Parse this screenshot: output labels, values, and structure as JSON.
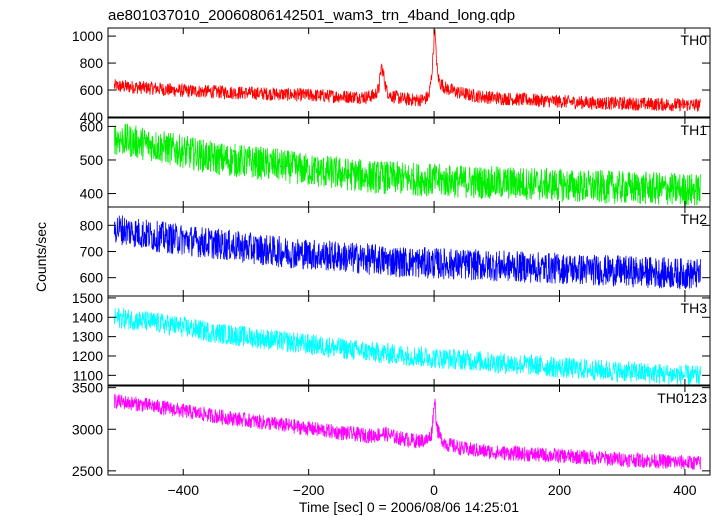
{
  "chart_data": {
    "type": "line",
    "title": "ae801037010_20060806142501_wam3_trn_4band_long.qdp",
    "xlabel": "Time [sec] 0 = 2006/08/06 14:25:01",
    "ylabel": "Counts/sec",
    "xlim": [
      -520,
      440
    ],
    "x_ticks": [
      -400,
      -200,
      0,
      200,
      400
    ],
    "x_tick_labels": [
      "−400",
      "−200",
      "0",
      "200",
      "400"
    ],
    "grid": false,
    "series": [
      {
        "name": "TH0",
        "color": "#ff0000",
        "ylim": [
          400,
          1060
        ],
        "y_ticks": [
          400,
          600,
          800,
          1000
        ],
        "points": [
          [
            -510,
            630
          ],
          [
            -490,
            625
          ],
          [
            -470,
            620
          ],
          [
            -440,
            610
          ],
          [
            -420,
            600
          ],
          [
            -400,
            595
          ],
          [
            -370,
            590
          ],
          [
            -340,
            585
          ],
          [
            -310,
            580
          ],
          [
            -280,
            575
          ],
          [
            -250,
            570
          ],
          [
            -220,
            565
          ],
          [
            -190,
            560
          ],
          [
            -160,
            555
          ],
          [
            -130,
            550
          ],
          [
            -110,
            548
          ],
          [
            -95,
            560
          ],
          [
            -88,
            610
          ],
          [
            -84,
            780
          ],
          [
            -80,
            700
          ],
          [
            -76,
            600
          ],
          [
            -70,
            560
          ],
          [
            -50,
            535
          ],
          [
            -30,
            525
          ],
          [
            -15,
            530
          ],
          [
            -8,
            560
          ],
          [
            -4,
            700
          ],
          [
            -1,
            900
          ],
          [
            1,
            1060
          ],
          [
            3,
            880
          ],
          [
            6,
            700
          ],
          [
            10,
            650
          ],
          [
            20,
            610
          ],
          [
            40,
            580
          ],
          [
            60,
            560
          ],
          [
            90,
            545
          ],
          [
            120,
            535
          ],
          [
            160,
            525
          ],
          [
            200,
            515
          ],
          [
            250,
            505
          ],
          [
            300,
            500
          ],
          [
            350,
            495
          ],
          [
            400,
            490
          ],
          [
            425,
            488
          ]
        ],
        "noise": 50
      },
      {
        "name": "TH1",
        "color": "#00ee00",
        "ylim": [
          360,
          625
        ],
        "y_ticks": [
          400,
          500,
          600
        ],
        "points": [
          [
            -510,
            565
          ],
          [
            -450,
            545
          ],
          [
            -400,
            525
          ],
          [
            -350,
            505
          ],
          [
            -300,
            495
          ],
          [
            -250,
            485
          ],
          [
            -200,
            470
          ],
          [
            -150,
            460
          ],
          [
            -100,
            450
          ],
          [
            -50,
            445
          ],
          [
            0,
            440
          ],
          [
            50,
            435
          ],
          [
            100,
            432
          ],
          [
            150,
            430
          ],
          [
            200,
            425
          ],
          [
            250,
            420
          ],
          [
            300,
            418
          ],
          [
            350,
            415
          ],
          [
            400,
            412
          ],
          [
            425,
            410
          ]
        ],
        "noise": 50
      },
      {
        "name": "TH2",
        "color": "#0000ff",
        "ylim": [
          530,
          870
        ],
        "y_ticks": [
          600,
          700,
          800
        ],
        "points": [
          [
            -510,
            790
          ],
          [
            -450,
            760
          ],
          [
            -400,
            745
          ],
          [
            -350,
            730
          ],
          [
            -300,
            715
          ],
          [
            -250,
            700
          ],
          [
            -200,
            690
          ],
          [
            -150,
            680
          ],
          [
            -100,
            670
          ],
          [
            -50,
            660
          ],
          [
            0,
            655
          ],
          [
            50,
            650
          ],
          [
            100,
            645
          ],
          [
            150,
            640
          ],
          [
            200,
            635
          ],
          [
            250,
            630
          ],
          [
            300,
            625
          ],
          [
            350,
            620
          ],
          [
            400,
            615
          ],
          [
            425,
            612
          ]
        ],
        "noise": 60
      },
      {
        "name": "TH3",
        "color": "#00ffff",
        "ylim": [
          1050,
          1510
        ],
        "y_ticks": [
          1100,
          1200,
          1300,
          1400,
          1500
        ],
        "points": [
          [
            -510,
            1400
          ],
          [
            -450,
            1375
          ],
          [
            -400,
            1350
          ],
          [
            -350,
            1320
          ],
          [
            -300,
            1300
          ],
          [
            -250,
            1280
          ],
          [
            -200,
            1260
          ],
          [
            -150,
            1240
          ],
          [
            -100,
            1220
          ],
          [
            -50,
            1205
          ],
          [
            0,
            1190
          ],
          [
            50,
            1180
          ],
          [
            100,
            1165
          ],
          [
            150,
            1155
          ],
          [
            200,
            1140
          ],
          [
            250,
            1130
          ],
          [
            300,
            1120
          ],
          [
            350,
            1110
          ],
          [
            400,
            1100
          ],
          [
            425,
            1095
          ]
        ],
        "noise": 55
      },
      {
        "name": "TH0123",
        "color": "#ff00ff",
        "ylim": [
          2450,
          3520
        ],
        "y_ticks": [
          2500,
          3000,
          3500
        ],
        "points": [
          [
            -510,
            3340
          ],
          [
            -450,
            3280
          ],
          [
            -400,
            3220
          ],
          [
            -350,
            3160
          ],
          [
            -300,
            3110
          ],
          [
            -250,
            3060
          ],
          [
            -200,
            3010
          ],
          [
            -150,
            2960
          ],
          [
            -100,
            2920
          ],
          [
            -80,
            2950
          ],
          [
            -60,
            2900
          ],
          [
            -30,
            2860
          ],
          [
            -10,
            2870
          ],
          [
            -4,
            2950
          ],
          [
            -1,
            3200
          ],
          [
            1,
            3380
          ],
          [
            3,
            3150
          ],
          [
            6,
            2980
          ],
          [
            10,
            2900
          ],
          [
            20,
            2820
          ],
          [
            50,
            2760
          ],
          [
            100,
            2720
          ],
          [
            150,
            2700
          ],
          [
            200,
            2680
          ],
          [
            250,
            2660
          ],
          [
            300,
            2640
          ],
          [
            350,
            2620
          ],
          [
            400,
            2600
          ],
          [
            425,
            2595
          ]
        ],
        "noise": 90
      }
    ]
  }
}
